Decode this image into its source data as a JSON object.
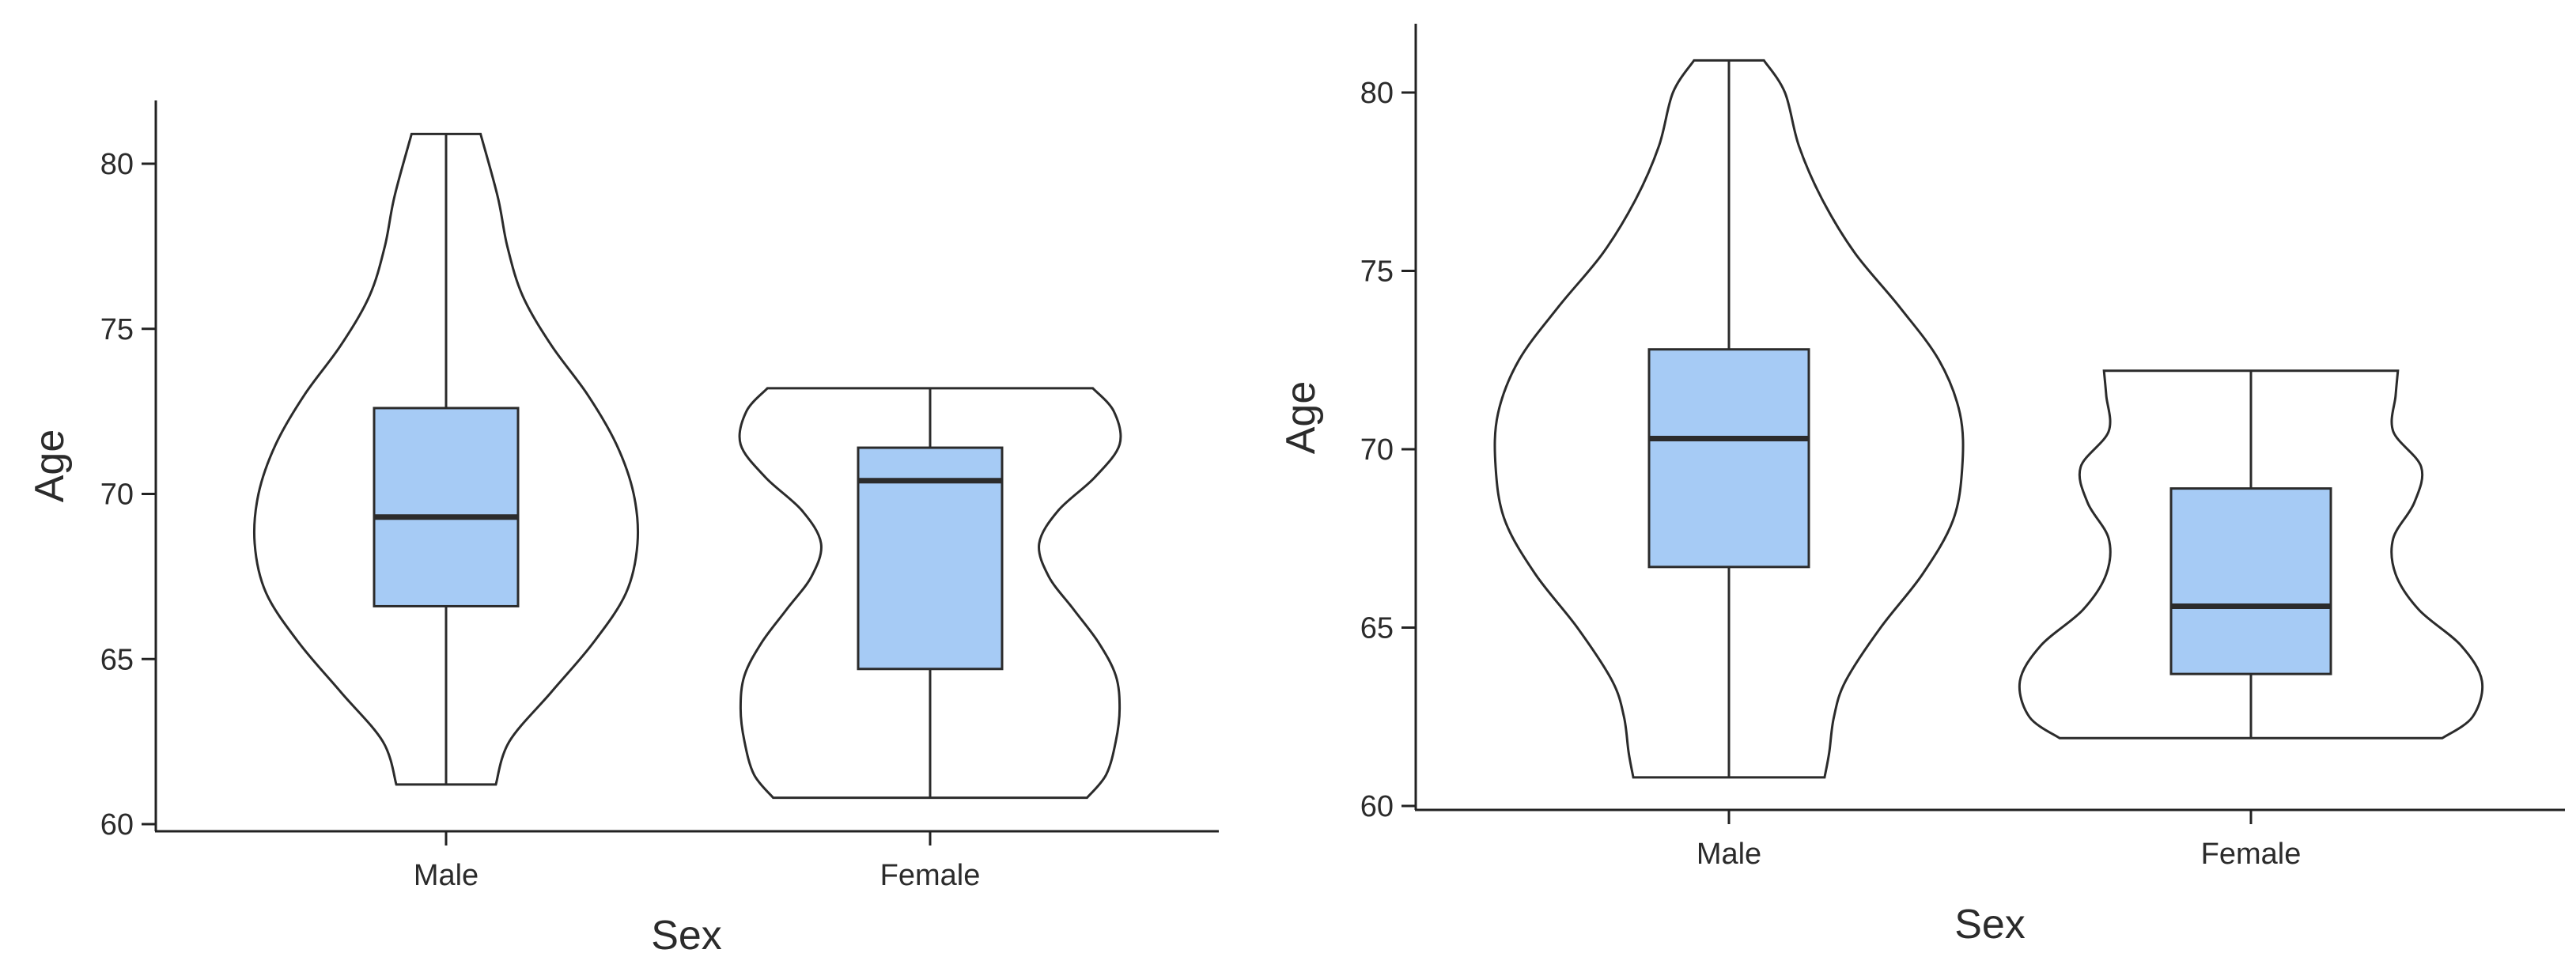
{
  "chart_data": [
    {
      "type": "violin",
      "xlabel": "Sex",
      "ylabel": "Age",
      "ylim": [
        60,
        82
      ],
      "yticks": [
        60,
        65,
        70,
        75,
        80
      ],
      "categories": [
        "Male",
        "Female"
      ],
      "box_color": "#a6cbf5",
      "groups": [
        {
          "name": "Male",
          "min": 61.2,
          "q1": 66.6,
          "median": 69.3,
          "q3": 72.6,
          "max": 80.9,
          "density": [
            [
              61.2,
              0.26
            ],
            [
              62.5,
              0.33
            ],
            [
              64.0,
              0.55
            ],
            [
              65.5,
              0.77
            ],
            [
              67.0,
              0.94
            ],
            [
              68.5,
              1.0
            ],
            [
              70.0,
              0.98
            ],
            [
              71.5,
              0.89
            ],
            [
              73.0,
              0.74
            ],
            [
              74.5,
              0.55
            ],
            [
              76.0,
              0.4
            ],
            [
              77.5,
              0.32
            ],
            [
              79.0,
              0.27
            ],
            [
              80.9,
              0.18
            ]
          ]
        },
        {
          "name": "Female",
          "min": 60.8,
          "q1": 64.7,
          "median": 70.4,
          "q3": 71.4,
          "max": 73.2,
          "density": [
            [
              60.8,
              0.82
            ],
            [
              61.5,
              0.92
            ],
            [
              62.5,
              0.97
            ],
            [
              63.5,
              0.99
            ],
            [
              64.5,
              0.97
            ],
            [
              65.5,
              0.88
            ],
            [
              66.5,
              0.75
            ],
            [
              67.5,
              0.62
            ],
            [
              68.5,
              0.57
            ],
            [
              69.5,
              0.67
            ],
            [
              70.5,
              0.86
            ],
            [
              71.5,
              0.99
            ],
            [
              72.5,
              0.96
            ],
            [
              73.2,
              0.85
            ]
          ]
        }
      ]
    },
    {
      "type": "violin",
      "xlabel": "Sex",
      "ylabel": "Age",
      "ylim": [
        60,
        82
      ],
      "yticks": [
        60,
        65,
        70,
        75,
        80
      ],
      "categories": [
        "Male",
        "Female"
      ],
      "box_color": "#a6cbf5",
      "groups": [
        {
          "name": "Male",
          "min": 60.8,
          "q1": 66.7,
          "median": 70.3,
          "q3": 72.8,
          "max": 80.9,
          "density": [
            [
              60.8,
              0.41
            ],
            [
              61.5,
              0.43
            ],
            [
              62.5,
              0.45
            ],
            [
              63.5,
              0.5
            ],
            [
              65.0,
              0.65
            ],
            [
              66.5,
              0.83
            ],
            [
              68.0,
              0.96
            ],
            [
              69.5,
              1.0
            ],
            [
              71.0,
              0.99
            ],
            [
              72.5,
              0.9
            ],
            [
              74.0,
              0.73
            ],
            [
              75.5,
              0.54
            ],
            [
              77.0,
              0.4
            ],
            [
              78.5,
              0.3
            ],
            [
              80.0,
              0.24
            ],
            [
              80.9,
              0.15
            ]
          ]
        },
        {
          "name": "Female",
          "min": 61.9,
          "q1": 63.7,
          "median": 65.6,
          "q3": 68.9,
          "max": 72.2,
          "density": [
            [
              61.9,
              0.82
            ],
            [
              62.5,
              0.95
            ],
            [
              63.5,
              0.99
            ],
            [
              64.5,
              0.9
            ],
            [
              65.5,
              0.72
            ],
            [
              66.5,
              0.62
            ],
            [
              67.5,
              0.61
            ],
            [
              68.5,
              0.7
            ],
            [
              69.5,
              0.73
            ],
            [
              70.5,
              0.61
            ],
            [
              71.5,
              0.62
            ],
            [
              72.2,
              0.63
            ]
          ]
        }
      ]
    }
  ]
}
